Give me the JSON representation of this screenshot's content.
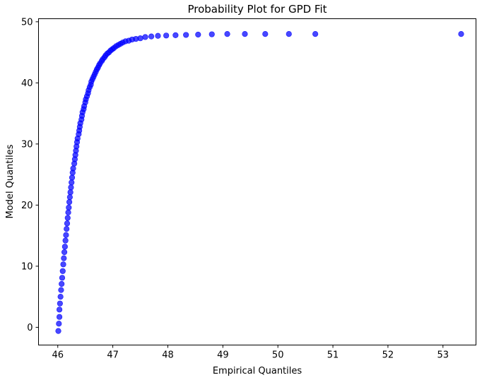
{
  "chart_data": {
    "type": "scatter",
    "title": "Probability Plot for GPD Fit",
    "xlabel": "Empirical Quantiles",
    "ylabel": "Model Quantiles",
    "xlim": [
      45.65,
      53.6
    ],
    "ylim": [
      -2.9,
      50.5
    ],
    "xticks": [
      "46",
      "47",
      "48",
      "49",
      "50",
      "51",
      "52",
      "53"
    ],
    "yticks": [
      "0",
      "10",
      "20",
      "30",
      "40",
      "50"
    ],
    "grid": false,
    "legend": "none",
    "marker_color": "#0000ff",
    "series": [
      {
        "points": [
          [
            46.01,
            -0.6
          ],
          [
            46.02,
            0.6
          ],
          [
            46.03,
            1.7
          ],
          [
            46.03,
            2.9
          ],
          [
            46.04,
            3.9
          ],
          [
            46.05,
            5.0
          ],
          [
            46.06,
            6.1
          ],
          [
            46.07,
            7.1
          ],
          [
            46.08,
            8.1
          ],
          [
            46.09,
            9.2
          ],
          [
            46.1,
            10.3
          ],
          [
            46.11,
            11.3
          ],
          [
            46.12,
            12.3
          ],
          [
            46.13,
            13.2
          ],
          [
            46.14,
            14.2
          ],
          [
            46.15,
            15.1
          ],
          [
            46.16,
            16.1
          ],
          [
            46.17,
            17.0
          ],
          [
            46.18,
            17.9
          ],
          [
            46.19,
            18.8
          ],
          [
            46.2,
            19.6
          ],
          [
            46.21,
            20.5
          ],
          [
            46.22,
            21.3
          ],
          [
            46.23,
            22.1
          ],
          [
            46.24,
            22.9
          ],
          [
            46.25,
            23.7
          ],
          [
            46.26,
            24.5
          ],
          [
            46.27,
            25.3
          ],
          [
            46.28,
            26.0
          ],
          [
            46.3,
            26.8
          ],
          [
            46.31,
            27.5
          ],
          [
            46.32,
            28.2
          ],
          [
            46.33,
            28.9
          ],
          [
            46.34,
            29.6
          ],
          [
            46.35,
            30.3
          ],
          [
            46.36,
            30.9
          ],
          [
            46.38,
            31.6
          ],
          [
            46.39,
            32.2
          ],
          [
            46.4,
            32.8
          ],
          [
            46.41,
            33.4
          ],
          [
            46.43,
            34.0
          ],
          [
            46.44,
            34.6
          ],
          [
            46.45,
            35.2
          ],
          [
            46.47,
            35.7
          ],
          [
            46.48,
            36.2
          ],
          [
            46.5,
            36.8
          ],
          [
            46.51,
            37.3
          ],
          [
            46.53,
            37.8
          ],
          [
            46.55,
            38.3
          ],
          [
            46.56,
            38.8
          ],
          [
            46.58,
            39.3
          ],
          [
            46.6,
            39.7
          ],
          [
            46.61,
            40.2
          ],
          [
            46.63,
            40.6
          ],
          [
            46.65,
            41.0
          ],
          [
            46.67,
            41.4
          ],
          [
            46.69,
            41.8
          ],
          [
            46.71,
            42.2
          ],
          [
            46.73,
            42.5
          ],
          [
            46.75,
            42.9
          ],
          [
            46.77,
            43.2
          ],
          [
            46.8,
            43.6
          ],
          [
            46.82,
            43.9
          ],
          [
            46.85,
            44.2
          ],
          [
            46.87,
            44.5
          ],
          [
            46.9,
            44.8
          ],
          [
            46.93,
            45.0
          ],
          [
            46.96,
            45.3
          ],
          [
            46.99,
            45.5
          ],
          [
            47.02,
            45.7
          ],
          [
            47.06,
            46.0
          ],
          [
            47.1,
            46.2
          ],
          [
            47.14,
            46.4
          ],
          [
            47.18,
            46.6
          ],
          [
            47.23,
            46.8
          ],
          [
            47.29,
            46.9
          ],
          [
            47.35,
            47.1
          ],
          [
            47.42,
            47.2
          ],
          [
            47.5,
            47.3
          ],
          [
            47.59,
            47.5
          ],
          [
            47.7,
            47.6
          ],
          [
            47.82,
            47.7
          ],
          [
            47.97,
            47.75
          ],
          [
            48.14,
            47.8
          ],
          [
            48.33,
            47.85
          ],
          [
            48.55,
            47.9
          ],
          [
            48.8,
            47.95
          ],
          [
            49.08,
            48.0
          ],
          [
            49.4,
            48.0
          ],
          [
            49.77,
            48.0
          ],
          [
            50.2,
            48.0
          ],
          [
            50.68,
            48.0
          ],
          [
            53.33,
            48.0
          ]
        ]
      }
    ]
  }
}
